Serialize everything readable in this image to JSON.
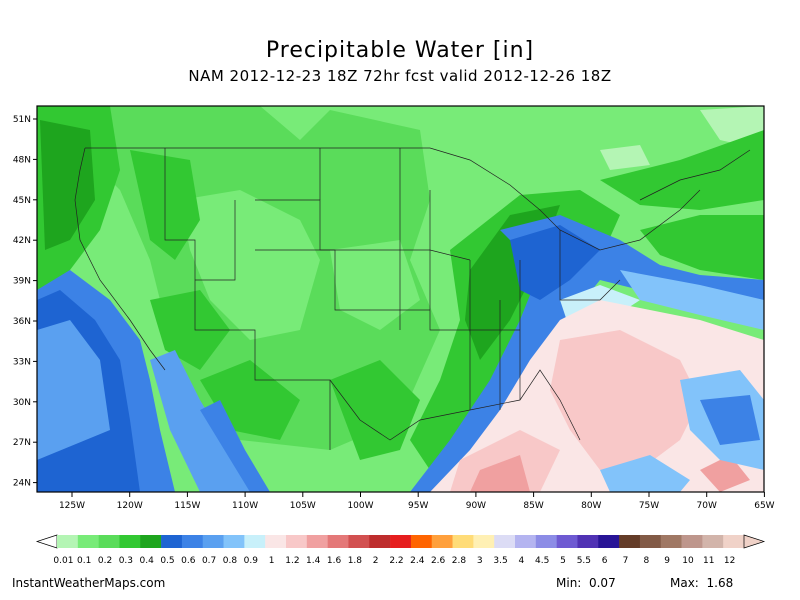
{
  "title": "Precipitable Water [in]",
  "subtitle": "NAM 2012-12-23 18Z 72hr fcst valid 2012-12-26 18Z",
  "map": {
    "lat_labels": [
      "51N",
      "48N",
      "45N",
      "42N",
      "39N",
      "36N",
      "33N",
      "30N",
      "27N",
      "24N"
    ],
    "lon_labels": [
      "125W",
      "120W",
      "115W",
      "110W",
      "105W",
      "100W",
      "95W",
      "90W",
      "85W",
      "80W",
      "75W",
      "70W",
      "65W"
    ]
  },
  "colorbar": {
    "labels": [
      "0.01",
      "0.1",
      "0.2",
      "0.3",
      "0.4",
      "0.5",
      "0.6",
      "0.7",
      "0.8",
      "0.9",
      "1",
      "1.2",
      "1.4",
      "1.6",
      "1.8",
      "2",
      "2.2",
      "2.4",
      "2.6",
      "2.8",
      "3",
      "3.5",
      "4",
      "4.5",
      "5",
      "5.5",
      "6",
      "7",
      "8",
      "9",
      "10",
      "11",
      "12"
    ],
    "colors": [
      "#b4f5b4",
      "#78eb78",
      "#5adc5a",
      "#32c832",
      "#1ea51e",
      "#1e64d2",
      "#3c82e6",
      "#5aa0f0",
      "#82c3fa",
      "#c8f0fa",
      "#fae6e6",
      "#f8c8c8",
      "#f0a0a0",
      "#e47878",
      "#d25050",
      "#be2d2d",
      "#e61e1e",
      "#ff6400",
      "#ffa03c",
      "#ffdc78",
      "#fff0b4",
      "#dcdcf5",
      "#b4b4f0",
      "#8c8ce6",
      "#6e5ad2",
      "#5032b4",
      "#281496",
      "#643c28",
      "#825a46",
      "#a07864",
      "#be968c",
      "#d2b4aa",
      "#f0d2c8"
    ]
  },
  "footer": {
    "site": "InstantWeatherMaps.com",
    "min_label": "Min:",
    "min_value": "0.07",
    "max_label": "Max:",
    "max_value": "1.68"
  }
}
